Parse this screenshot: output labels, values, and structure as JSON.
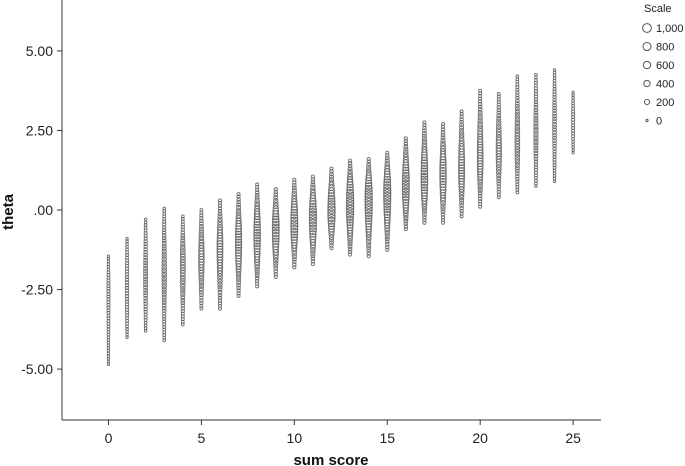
{
  "chart_data": {
    "type": "scatter",
    "xlabel": "sum score",
    "ylabel": "theta",
    "xlim": [
      -2.5,
      26.5
    ],
    "ylim": [
      -6.6,
      6.6
    ],
    "x_ticks": [
      0,
      5,
      10,
      15,
      20,
      25
    ],
    "x_tick_labels": [
      "0",
      "5",
      "10",
      "15",
      "20",
      "25"
    ],
    "y_ticks": [
      5,
      2.5,
      0,
      -2.5,
      -5
    ],
    "y_tick_labels": [
      "5.00",
      "2.50",
      ".00",
      "-2.50",
      "-5.00"
    ],
    "grid": false,
    "marker_color": "#6b6b6b",
    "size_legend": {
      "title": "Scale",
      "position": "top-right",
      "entries": [
        {
          "label": "1,000",
          "value": 1000
        },
        {
          "label": "800",
          "value": 800
        },
        {
          "label": "600",
          "value": 600
        },
        {
          "label": "400",
          "value": 400
        },
        {
          "label": "200",
          "value": 200
        },
        {
          "label": "0",
          "value": 0
        }
      ]
    },
    "columns": [
      {
        "x": 0,
        "y_min": -4.85,
        "y_max": -1.45,
        "center": -2.5,
        "peak_count": 20
      },
      {
        "x": 1,
        "y_min": -4.0,
        "y_max": -0.9,
        "center": -2.4,
        "peak_count": 40
      },
      {
        "x": 2,
        "y_min": -3.8,
        "y_max": -0.3,
        "center": -2.1,
        "peak_count": 80
      },
      {
        "x": 3,
        "y_min": -4.1,
        "y_max": 0.05,
        "center": -1.9,
        "peak_count": 120
      },
      {
        "x": 4,
        "y_min": -3.6,
        "y_max": -0.2,
        "center": -1.7,
        "peak_count": 180
      },
      {
        "x": 5,
        "y_min": -3.1,
        "y_max": 0.0,
        "center": -1.5,
        "peak_count": 260
      },
      {
        "x": 6,
        "y_min": -3.1,
        "y_max": 0.3,
        "center": -1.2,
        "peak_count": 330
      },
      {
        "x": 7,
        "y_min": -2.7,
        "y_max": 0.5,
        "center": -1.0,
        "peak_count": 400
      },
      {
        "x": 8,
        "y_min": -2.4,
        "y_max": 0.8,
        "center": -0.8,
        "peak_count": 460
      },
      {
        "x": 9,
        "y_min": -2.1,
        "y_max": 0.65,
        "center": -0.6,
        "peak_count": 520
      },
      {
        "x": 10,
        "y_min": -1.8,
        "y_max": 0.95,
        "center": -0.45,
        "peak_count": 560
      },
      {
        "x": 11,
        "y_min": -1.7,
        "y_max": 1.05,
        "center": -0.25,
        "peak_count": 600
      },
      {
        "x": 12,
        "y_min": -1.2,
        "y_max": 1.3,
        "center": -0.05,
        "peak_count": 640
      },
      {
        "x": 13,
        "y_min": -1.4,
        "y_max": 1.55,
        "center": 0.2,
        "peak_count": 650
      },
      {
        "x": 14,
        "y_min": -1.45,
        "y_max": 1.6,
        "center": 0.35,
        "peak_count": 640
      },
      {
        "x": 15,
        "y_min": -1.25,
        "y_max": 1.8,
        "center": 0.55,
        "peak_count": 610
      },
      {
        "x": 16,
        "y_min": -0.6,
        "y_max": 2.25,
        "center": 0.75,
        "peak_count": 560
      },
      {
        "x": 17,
        "y_min": -0.4,
        "y_max": 2.75,
        "center": 0.95,
        "peak_count": 500
      },
      {
        "x": 18,
        "y_min": -0.4,
        "y_max": 2.7,
        "center": 1.1,
        "peak_count": 430
      },
      {
        "x": 19,
        "y_min": -0.2,
        "y_max": 3.1,
        "center": 1.3,
        "peak_count": 360
      },
      {
        "x": 20,
        "y_min": 0.1,
        "y_max": 3.75,
        "center": 1.6,
        "peak_count": 300
      },
      {
        "x": 21,
        "y_min": 0.4,
        "y_max": 3.65,
        "center": 1.8,
        "peak_count": 230
      },
      {
        "x": 22,
        "y_min": 0.55,
        "y_max": 4.2,
        "center": 2.1,
        "peak_count": 160
      },
      {
        "x": 23,
        "y_min": 0.75,
        "y_max": 4.25,
        "center": 2.4,
        "peak_count": 100
      },
      {
        "x": 24,
        "y_min": 0.9,
        "y_max": 4.4,
        "center": 2.7,
        "peak_count": 60
      },
      {
        "x": 25,
        "y_min": 1.8,
        "y_max": 3.7,
        "center": 2.8,
        "peak_count": 20
      }
    ]
  }
}
